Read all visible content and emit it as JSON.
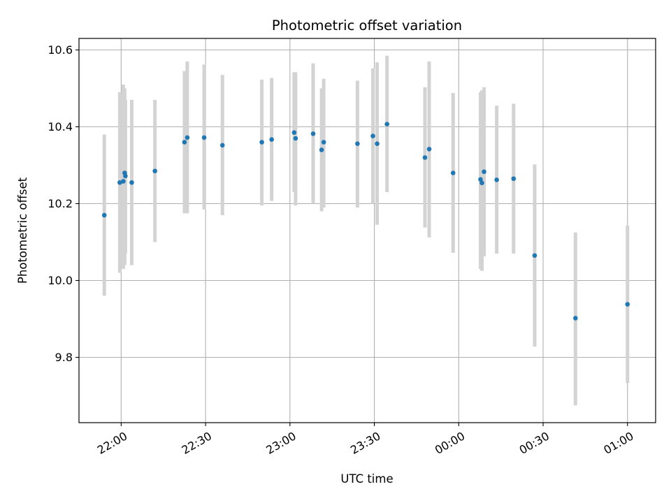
{
  "chart_data": {
    "type": "scatter",
    "title": "Photometric offset variation",
    "xlabel": "UTC time",
    "ylabel": "Photometric offset",
    "x_unit": "UTC time (HH:MM)",
    "xlim": [
      "21:45",
      "01:10"
    ],
    "ylim": [
      9.63,
      10.63
    ],
    "grid": true,
    "colors": {
      "point": "#1f77b4",
      "errorbar": "#d3d3d3",
      "grid": "#b0b0b0"
    },
    "x_ticks": [
      {
        "time": "22:00",
        "label": "22:00"
      },
      {
        "time": "22:30",
        "label": "22:30"
      },
      {
        "time": "23:00",
        "label": "23:00"
      },
      {
        "time": "23:30",
        "label": "23:30"
      },
      {
        "time": "00:00",
        "label": "00:00"
      },
      {
        "time": "00:30",
        "label": "00:30"
      },
      {
        "time": "01:00",
        "label": "01:00"
      }
    ],
    "y_ticks": [
      {
        "value": 9.8,
        "label": "9.8"
      },
      {
        "value": 10.0,
        "label": "10.0"
      },
      {
        "value": 10.2,
        "label": "10.2"
      },
      {
        "value": 10.4,
        "label": "10.4"
      },
      {
        "value": 10.6,
        "label": "10.6"
      }
    ],
    "points": [
      {
        "time": "21:54:00",
        "y": 10.17,
        "ylow": 9.96,
        "yhigh": 10.38
      },
      {
        "time": "21:59:30",
        "y": 10.255,
        "ylow": 10.02,
        "yhigh": 10.49
      },
      {
        "time": "22:00:45",
        "y": 10.258,
        "ylow": 10.03,
        "yhigh": 10.51
      },
      {
        "time": "22:01:15",
        "y": 10.28,
        "ylow": 10.04,
        "yhigh": 10.5
      },
      {
        "time": "22:01:30",
        "y": 10.272,
        "ylow": 10.07,
        "yhigh": 10.47
      },
      {
        "time": "22:03:45",
        "y": 10.255,
        "ylow": 10.04,
        "yhigh": 10.47
      },
      {
        "time": "22:12:00",
        "y": 10.285,
        "ylow": 10.1,
        "yhigh": 10.47
      },
      {
        "time": "22:22:30",
        "y": 10.36,
        "ylow": 10.175,
        "yhigh": 10.545
      },
      {
        "time": "22:23:30",
        "y": 10.372,
        "ylow": 10.175,
        "yhigh": 10.57
      },
      {
        "time": "22:29:30",
        "y": 10.372,
        "ylow": 10.185,
        "yhigh": 10.562
      },
      {
        "time": "22:36:00",
        "y": 10.352,
        "ylow": 10.17,
        "yhigh": 10.535
      },
      {
        "time": "22:50:00",
        "y": 10.36,
        "ylow": 10.195,
        "yhigh": 10.523
      },
      {
        "time": "22:53:30",
        "y": 10.367,
        "ylow": 10.207,
        "yhigh": 10.527
      },
      {
        "time": "23:01:30",
        "y": 10.385,
        "ylow": 10.23,
        "yhigh": 10.542
      },
      {
        "time": "23:02:00",
        "y": 10.37,
        "ylow": 10.195,
        "yhigh": 10.542
      },
      {
        "time": "23:08:15",
        "y": 10.382,
        "ylow": 10.2,
        "yhigh": 10.565
      },
      {
        "time": "23:11:15",
        "y": 10.34,
        "ylow": 10.18,
        "yhigh": 10.5
      },
      {
        "time": "23:12:00",
        "y": 10.36,
        "ylow": 10.19,
        "yhigh": 10.525
      },
      {
        "time": "23:24:00",
        "y": 10.356,
        "ylow": 10.19,
        "yhigh": 10.52
      },
      {
        "time": "23:29:30",
        "y": 10.376,
        "ylow": 10.2,
        "yhigh": 10.552
      },
      {
        "time": "23:31:00",
        "y": 10.356,
        "ylow": 10.145,
        "yhigh": 10.568
      },
      {
        "time": "23:34:30",
        "y": 10.407,
        "ylow": 10.23,
        "yhigh": 10.585
      },
      {
        "time": "23:48:00",
        "y": 10.32,
        "ylow": 10.138,
        "yhigh": 10.503
      },
      {
        "time": "23:49:30",
        "y": 10.342,
        "ylow": 10.112,
        "yhigh": 10.57
      },
      {
        "time": "23:58:00",
        "y": 10.28,
        "ylow": 10.072,
        "yhigh": 10.488
      },
      {
        "time": "00:07:45",
        "y": 10.263,
        "ylow": 10.03,
        "yhigh": 10.49
      },
      {
        "time": "00:08:15",
        "y": 10.254,
        "ylow": 10.025,
        "yhigh": 10.495
      },
      {
        "time": "00:09:00",
        "y": 10.283,
        "ylow": 10.063,
        "yhigh": 10.503
      },
      {
        "time": "00:13:30",
        "y": 10.262,
        "ylow": 10.07,
        "yhigh": 10.455
      },
      {
        "time": "00:19:30",
        "y": 10.265,
        "ylow": 10.07,
        "yhigh": 10.46
      },
      {
        "time": "00:27:00",
        "y": 10.065,
        "ylow": 9.828,
        "yhigh": 10.302
      },
      {
        "time": "00:41:30",
        "y": 9.902,
        "ylow": 9.675,
        "yhigh": 10.125
      },
      {
        "time": "01:00:00",
        "y": 9.938,
        "ylow": 9.733,
        "yhigh": 10.143
      }
    ]
  }
}
